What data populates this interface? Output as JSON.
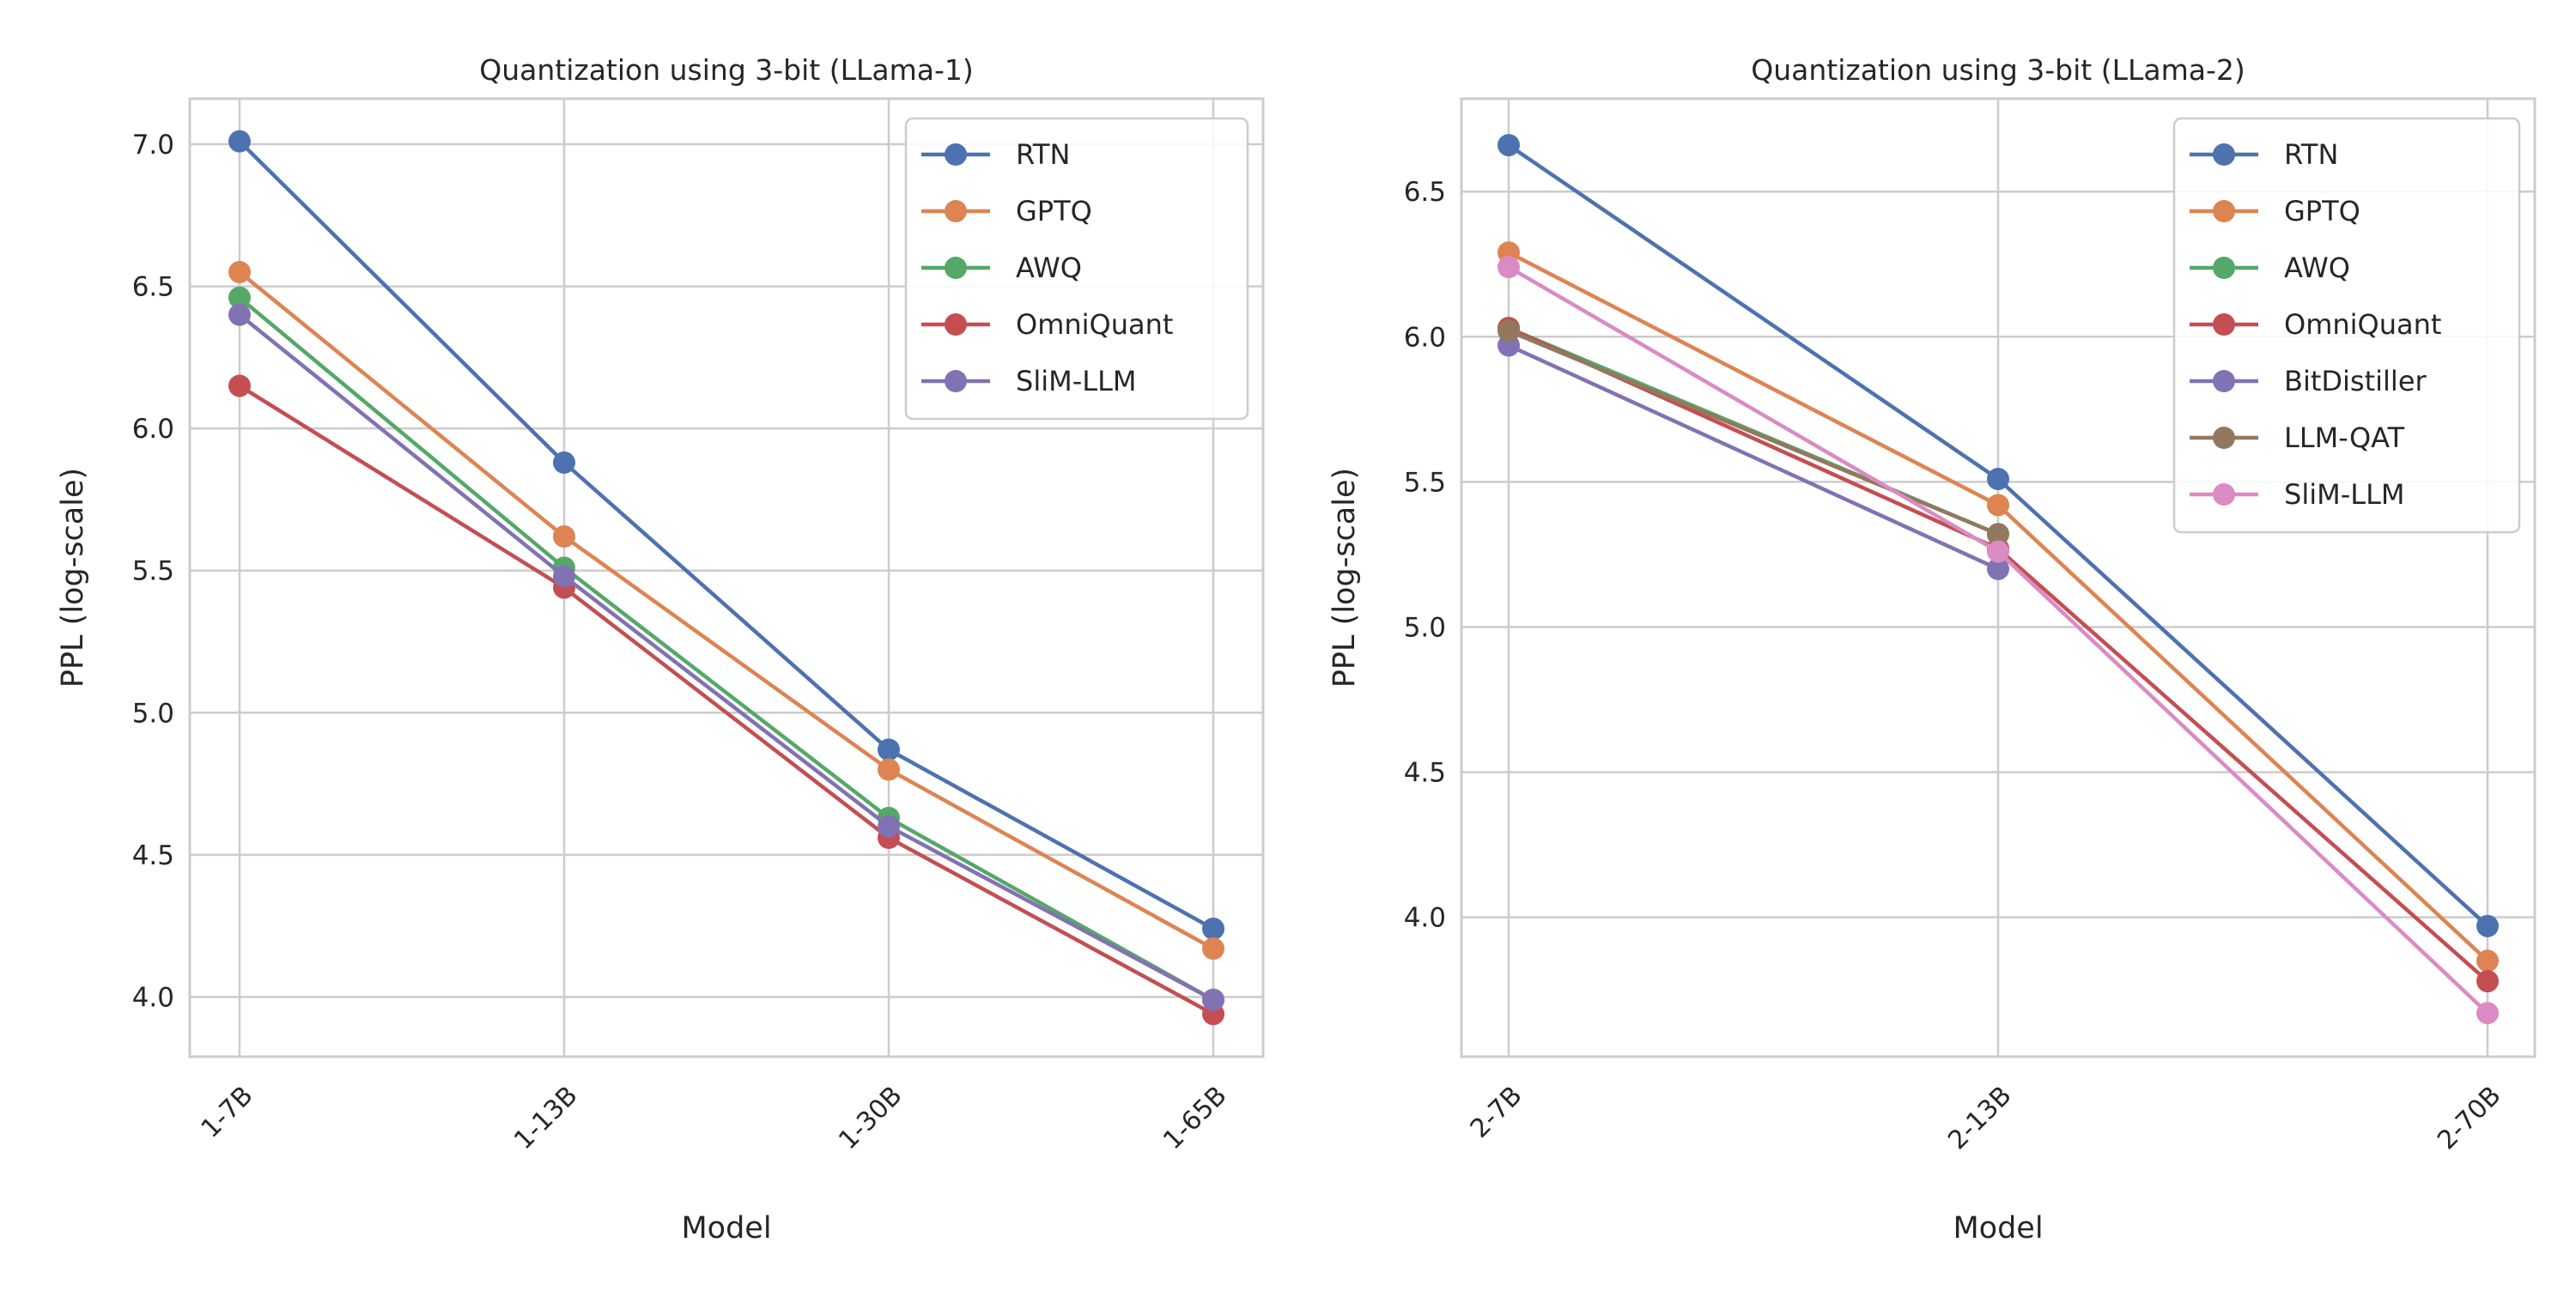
{
  "chart_data": [
    {
      "type": "line",
      "title": "Quantization using 3-bit (LLama-1)",
      "xlabel": "Model",
      "ylabel": "PPL (log-scale)",
      "categories": [
        "1-7B",
        "1-13B",
        "1-30B",
        "1-65B"
      ],
      "yticks": [
        "4.0",
        "4.5",
        "5.0",
        "5.5",
        "6.0",
        "6.5",
        "7.0"
      ],
      "ylim": [
        3.79,
        7.16
      ],
      "grid": true,
      "legend_position": "top-right",
      "series": [
        {
          "name": "RTN",
          "color": "#4c72b0",
          "values": [
            7.01,
            5.88,
            4.87,
            4.24
          ]
        },
        {
          "name": "GPTQ",
          "color": "#dd8452",
          "values": [
            6.55,
            5.62,
            4.8,
            4.17
          ]
        },
        {
          "name": "AWQ",
          "color": "#55a868",
          "values": [
            6.46,
            5.51,
            4.63,
            3.99
          ]
        },
        {
          "name": "OmniQuant",
          "color": "#c44e52",
          "values": [
            6.15,
            5.44,
            4.56,
            3.94
          ]
        },
        {
          "name": "SliM-LLM",
          "color": "#8172b3",
          "values": [
            6.4,
            5.48,
            4.6,
            3.99
          ]
        }
      ]
    },
    {
      "type": "line",
      "title": "Quantization using 3-bit (LLama-2)",
      "xlabel": "Model",
      "ylabel": "PPL (log-scale)",
      "categories": [
        "2-7B",
        "2-13B",
        "2-70B"
      ],
      "yticks": [
        "4.0",
        "4.5",
        "5.0",
        "5.5",
        "6.0",
        "6.5"
      ],
      "ylim": [
        3.52,
        6.82
      ],
      "grid": true,
      "legend_position": "top-right",
      "series": [
        {
          "name": "RTN",
          "color": "#4c72b0",
          "values": [
            6.66,
            5.51,
            3.97
          ]
        },
        {
          "name": "GPTQ",
          "color": "#dd8452",
          "values": [
            6.29,
            5.42,
            3.85
          ]
        },
        {
          "name": "AWQ",
          "color": "#55a868",
          "values": [
            6.03,
            5.32,
            null
          ]
        },
        {
          "name": "OmniQuant",
          "color": "#c44e52",
          "values": [
            6.03,
            5.27,
            3.78
          ]
        },
        {
          "name": "BitDistiller",
          "color": "#8172b3",
          "values": [
            5.97,
            5.2,
            null
          ]
        },
        {
          "name": "LLM-QAT",
          "color": "#937860",
          "values": [
            6.02,
            5.32,
            null
          ]
        },
        {
          "name": "SliM-LLM",
          "color": "#da8bc3",
          "values": [
            6.24,
            5.26,
            3.67
          ]
        }
      ]
    }
  ]
}
